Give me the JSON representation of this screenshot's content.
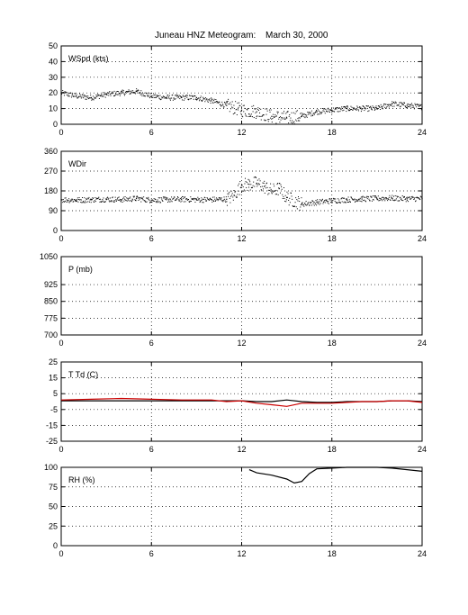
{
  "figure": {
    "title": "Juneau HNZ Meteogram:",
    "date": "March 30, 2000"
  },
  "chart_data": [
    {
      "type": "scatter",
      "panel_label": "WSpd (kts)",
      "x_ticks": [
        0,
        6,
        12,
        18,
        24
      ],
      "y_ticks": [
        0,
        10,
        20,
        30,
        40,
        50
      ],
      "xlim": [
        0,
        24
      ],
      "ylim": [
        0,
        50
      ],
      "grid": true,
      "series": [
        {
          "color": "#000000",
          "x": [
            0,
            1,
            2,
            3,
            4,
            5,
            6,
            7,
            8,
            9,
            10,
            11,
            12,
            13,
            14,
            15,
            16,
            17,
            18,
            19,
            20,
            21,
            22,
            23,
            24
          ],
          "y": [
            20,
            18,
            17,
            19,
            20,
            21,
            18,
            17,
            17,
            17,
            15,
            12,
            9,
            8,
            5,
            4,
            5,
            8,
            9,
            10,
            10,
            10,
            13,
            12,
            11
          ]
        }
      ]
    },
    {
      "type": "scatter",
      "panel_label": "WDir",
      "x_ticks": [
        0,
        6,
        12,
        18,
        24
      ],
      "y_ticks": [
        0,
        90,
        180,
        270,
        360
      ],
      "xlim": [
        0,
        24
      ],
      "ylim": [
        0,
        360
      ],
      "grid": true,
      "series": [
        {
          "color": "#000000",
          "x": [
            0,
            1,
            2,
            3,
            4,
            5,
            6,
            7,
            8,
            9,
            10,
            11,
            11.5,
            12,
            12.5,
            13,
            13.5,
            14,
            14.5,
            15,
            16,
            17,
            18,
            19,
            20,
            21,
            22,
            23,
            24
          ],
          "y": [
            140,
            138,
            140,
            142,
            140,
            145,
            138,
            140,
            142,
            140,
            140,
            142,
            160,
            205,
            210,
            215,
            200,
            180,
            190,
            150,
            120,
            128,
            135,
            140,
            143,
            145,
            147,
            144,
            145
          ]
        }
      ]
    },
    {
      "type": "line",
      "panel_label": "P (mb)",
      "x_ticks": [
        0,
        6,
        12,
        18,
        24
      ],
      "y_ticks": [
        700,
        775,
        850,
        925,
        1050
      ],
      "xlim": [
        0,
        24
      ],
      "ylim": [
        700,
        1050
      ],
      "grid": true,
      "series": []
    },
    {
      "type": "line",
      "panel_label": "T Td (C)",
      "x_ticks": [
        0,
        6,
        12,
        18,
        24
      ],
      "y_ticks": [
        -25,
        -15,
        -5,
        5,
        15,
        25
      ],
      "xlim": [
        0,
        24
      ],
      "ylim": [
        -25,
        25
      ],
      "grid": true,
      "series": [
        {
          "color": "#000000",
          "x": [
            0,
            2,
            4,
            6,
            8,
            10,
            12,
            13,
            14,
            15,
            16,
            17,
            18,
            19,
            20,
            21,
            22,
            23,
            24
          ],
          "y": [
            0.5,
            0.5,
            0.5,
            0.5,
            0.5,
            0.5,
            0.5,
            0,
            0,
            1,
            0,
            -0.5,
            -0.5,
            0,
            0,
            0,
            0.5,
            0.5,
            0
          ]
        },
        {
          "color": "#cc0000",
          "x": [
            0,
            2,
            4,
            6,
            8,
            10,
            11,
            12,
            13,
            14,
            15,
            16,
            17,
            18,
            19,
            20,
            21,
            22,
            23,
            24
          ],
          "y": [
            1,
            1.5,
            2,
            1.5,
            1,
            1,
            0,
            0.5,
            -1,
            -2,
            -3,
            -1,
            -1,
            -1,
            -0.5,
            0,
            0,
            0.5,
            0.5,
            -0.5
          ]
        }
      ]
    },
    {
      "type": "line",
      "panel_label": "RH (%)",
      "x_ticks": [
        0,
        6,
        12,
        18,
        24
      ],
      "y_ticks": [
        0,
        25,
        50,
        75,
        100
      ],
      "xlim": [
        0,
        24
      ],
      "ylim": [
        0,
        100
      ],
      "grid": true,
      "series": [
        {
          "color": "#000000",
          "x": [
            12.5,
            13,
            14,
            15,
            15.5,
            16,
            16.5,
            17,
            18,
            19,
            20,
            21,
            22,
            23,
            24
          ],
          "y": [
            97,
            93,
            90,
            85,
            80,
            82,
            92,
            98,
            99,
            100,
            100,
            100,
            99,
            97,
            95
          ]
        }
      ]
    }
  ]
}
